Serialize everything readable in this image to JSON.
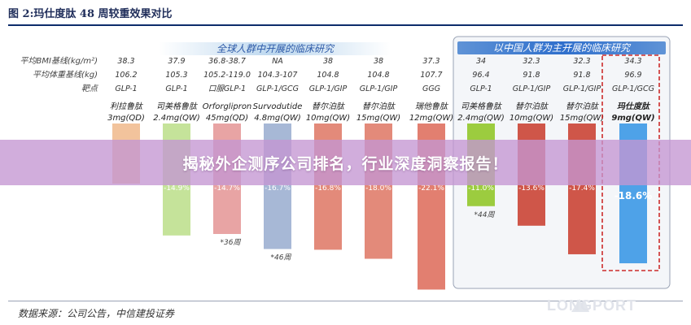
{
  "figure": {
    "title": "图 2:玛仕度肽 48 周较重效果对比",
    "source": "数据来源：公司公告，中信建投证券",
    "watermark": "LONGPORT"
  },
  "banner": {
    "text": "揭秘外企测序公司排名，行业深度洞察报告！"
  },
  "chart_data": {
    "type": "bar",
    "group_headers": [
      "全球人群中开展的临床研究",
      "以中国人群为主开展的临床研究"
    ],
    "row_labels": [
      "平均BMI基线(kg/m²)",
      "平均体重基线(kg)",
      "靶点"
    ],
    "categories": [
      {
        "name": "利拉鲁肽",
        "dose": "3mg(QD)",
        "bmi": "38.3",
        "weight": "106.2",
        "target": "GLP-1",
        "value": -8.0,
        "label": "-8.0%",
        "note": "",
        "color": "#f2c39c",
        "group": 0
      },
      {
        "name": "司美格鲁肽",
        "dose": "2.4mg(QW)",
        "bmi": "37.9",
        "weight": "105.3",
        "target": "GLP-1",
        "value": -14.9,
        "label": "-14.9%",
        "note": "",
        "color": "#c5e39a",
        "group": 0
      },
      {
        "name": "Orforglipron",
        "dose": "45mg(QD)",
        "bmi": "36.8-38.7",
        "weight": "105.2-119.0",
        "target": "口服GLP-1",
        "value": -14.7,
        "label": "-14.7%",
        "note": "*36周",
        "color": "#e8a4a4",
        "group": 0
      },
      {
        "name": "Survodutide",
        "dose": "4.8mg(QW)",
        "bmi": "NA",
        "weight": "104.3-107",
        "target": "GLP-1/GCG",
        "value": -16.7,
        "label": "-16.7%",
        "note": "*46周",
        "color": "#a7b8d6",
        "group": 0
      },
      {
        "name": "替尔泊肽",
        "dose": "10mg(QW)",
        "bmi": "38",
        "weight": "104.8",
        "target": "GLP-1/GIP",
        "value": -16.8,
        "label": "-16.8%",
        "note": "",
        "color": "#e38a7a",
        "group": 0
      },
      {
        "name": "替尔泊肽",
        "dose": "15mg(QW)",
        "bmi": "38",
        "weight": "104.8",
        "target": "GLP-1/GIP",
        "value": -18.0,
        "label": "-18.0%",
        "note": "",
        "color": "#e38a7a",
        "group": 0
      },
      {
        "name": "瑞他鲁肽",
        "dose": "12mg(QW)",
        "bmi": "37.3",
        "weight": "107.7",
        "target": "GGG",
        "value": -22.1,
        "label": "-22.1%",
        "note": "",
        "color": "#e27f70",
        "group": 0
      },
      {
        "name": "司美格鲁肽",
        "dose": "2.4mg(QW)",
        "bmi": "34",
        "weight": "96.4",
        "target": "GLP-1",
        "value": -11.0,
        "label": "-11.0%",
        "note": "*44周",
        "color": "#9ccc3f",
        "group": 1
      },
      {
        "name": "替尔泊肽",
        "dose": "10mg(QW)",
        "bmi": "32.3",
        "weight": "91.8",
        "target": "GLP-1/GIP",
        "value": -13.6,
        "label": "-13.6%",
        "note": "",
        "color": "#cf5649",
        "group": 1
      },
      {
        "name": "替尔泊肽",
        "dose": "15mg(QW)",
        "bmi": "32.3",
        "weight": "91.8",
        "target": "GLP-1/GIP",
        "value": -17.4,
        "label": "-17.4%",
        "note": "",
        "color": "#cf5649",
        "group": 1
      },
      {
        "name": "玛仕度肽",
        "dose": "9mg(QW)",
        "bmi": "34.3",
        "weight": "96.9",
        "target": "GLP-1/GCG",
        "value": -18.6,
        "label": "-18.6%",
        "note": "",
        "color": "#4ea2e8",
        "group": 1,
        "highlight": true
      }
    ],
    "ylim": [
      -24,
      0
    ]
  }
}
